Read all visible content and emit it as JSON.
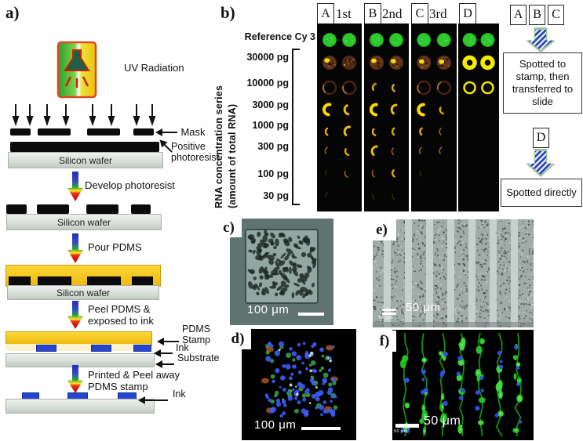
{
  "panel_a": {
    "label": "a)",
    "uv_radiation": "UV Radiation",
    "mask": "Mask",
    "positive_photoresist": "Positive photoresist",
    "silicon_wafer_1": "Silicon wafer",
    "develop": "Develop photoresist",
    "silicon_wafer_2": "Silicon wafer",
    "pour": "Pour PDMS",
    "silicon_wafer_3": "Silicon wafer",
    "peel": "Peel PDMS & exposed to ink",
    "pdms_stamp": "PDMS Stamp",
    "ink_1": "Ink",
    "substrate": "Substrate",
    "printed": "Printed & Peel away PDMS stamp",
    "ink_2": "Ink"
  },
  "panel_b": {
    "label": "b)",
    "reference": "Reference Cy 3",
    "series_label_line1": "RNA concentration series",
    "series_label_line2": "(amount of total RNA)",
    "concentrations": [
      "30000 pg",
      "10000 pg",
      "3000 pg",
      "1000 pg",
      "300 pg",
      "100 pg",
      "30 pg"
    ],
    "column_headers": [
      {
        "letter": "A",
        "ordinal": "1st"
      },
      {
        "letter": "B",
        "ordinal": "2nd"
      },
      {
        "letter": "C",
        "ordinal": "3rd"
      },
      {
        "letter": "D",
        "ordinal": ""
      }
    ],
    "spot_rows": [
      "Reference Cy 3",
      "30000 pg",
      "10000 pg",
      "3000 pg",
      "1000 pg",
      "300 pg",
      "100 pg",
      "30 pg"
    ],
    "spot_matrix": {
      "A": [
        [
          "green",
          "green"
        ],
        [
          "brown-yellow",
          "brown"
        ],
        [
          "dark-ring",
          "dark-ring"
        ],
        [
          "crescent-lg",
          "crescent-md"
        ],
        [
          "crescent-sm",
          "crescent-md"
        ],
        [
          "crescent-xs",
          "crescent-sm"
        ],
        [
          "faint",
          "crescent-xs"
        ],
        [
          "faint",
          "none"
        ]
      ],
      "B": [
        [
          "green",
          "green"
        ],
        [
          "brown-yellow",
          "brown-yellow"
        ],
        [
          "crescent-sm",
          "crescent-sm"
        ],
        [
          "crescent-lg",
          "crescent-md"
        ],
        [
          "crescent-sm",
          "crescent-sm"
        ],
        [
          "crescent-md",
          "crescent-xs"
        ],
        [
          "crescent-xs",
          "crescent-sm"
        ],
        [
          "faint",
          "faint"
        ]
      ],
      "C": [
        [
          "green",
          "green"
        ],
        [
          "brown-yellow",
          "brown-yellow"
        ],
        [
          "dark-ring",
          "dark-ring"
        ],
        [
          "crescent-lg",
          "crescent-sm"
        ],
        [
          "crescent-sm",
          "crescent-xs"
        ],
        [
          "crescent-xs",
          "crescent-xs"
        ],
        [
          "faint",
          "none"
        ],
        [
          "none",
          "none"
        ]
      ],
      "D": [
        [
          "green",
          "green"
        ],
        [
          "donut",
          "donut"
        ],
        [
          "ring",
          "ring"
        ],
        [
          "none",
          "none"
        ],
        [
          "none",
          "none"
        ],
        [
          "none",
          "none"
        ],
        [
          "none",
          "none"
        ],
        [
          "none",
          "none"
        ]
      ]
    },
    "legend_abc": {
      "letters": [
        "A",
        "B",
        "C"
      ],
      "caption": "Spotted to stamp, then transferred to slide"
    },
    "legend_d": {
      "letters": [
        "D"
      ],
      "caption": "Spotted directly"
    }
  },
  "panel_c": {
    "label": "c)",
    "scale_text": "100 μm"
  },
  "panel_d": {
    "label": "d)",
    "scale_text": "100 μm"
  },
  "panel_e": {
    "label": "e)",
    "scale_text": "50 μm",
    "scale_text_small": "50 μm"
  },
  "panel_f": {
    "label": "f)",
    "scale_text": "50 μm",
    "scale_text_small": "50 μm"
  },
  "colors": {
    "pdms_yellow": "#f4c411",
    "ink_blue": "#2646cf",
    "wafer_gray": "#dfe3df",
    "substrate_gray": "#c9cfc9",
    "spot_green": "#2dc72d",
    "spot_yellow": "#f5e400",
    "arrow_red": "#ef2512",
    "arrow_blue": "#2b3db8",
    "panel_black": "#050505"
  }
}
